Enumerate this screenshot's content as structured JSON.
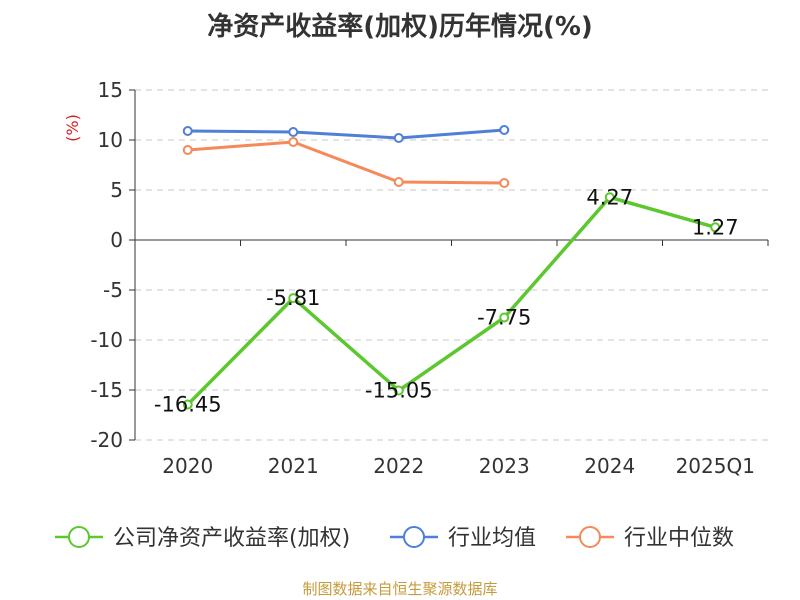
{
  "chart_data": {
    "type": "line",
    "title": "净资产收益率(加权)历年情况(%)",
    "ylabel": "(%)",
    "categories": [
      "2020",
      "2021",
      "2022",
      "2023",
      "2024",
      "2025Q1"
    ],
    "ylim": [
      -20,
      15
    ],
    "yticks": [
      15,
      10,
      5,
      0,
      -5,
      -10,
      -15,
      -20
    ],
    "grid": true,
    "legend_position": "bottom",
    "series": [
      {
        "name": "公司净资产收益率(加权)",
        "color": "#5cc72e",
        "values": [
          -16.45,
          -5.81,
          -15.05,
          -7.75,
          4.27,
          1.27
        ],
        "labels": [
          "-16.45",
          "-5.81",
          "-15.05",
          "-7.75",
          "4.27",
          "1.27"
        ]
      },
      {
        "name": "行业均值",
        "color": "#4f7fd9",
        "values": [
          10.9,
          10.8,
          10.2,
          11.0,
          null,
          null
        ]
      },
      {
        "name": "行业中位数",
        "color": "#f5895a",
        "values": [
          9.0,
          9.8,
          5.8,
          5.7,
          null,
          null
        ]
      }
    ]
  },
  "footer": {
    "source": "制图数据来自恒生聚源数据库"
  }
}
